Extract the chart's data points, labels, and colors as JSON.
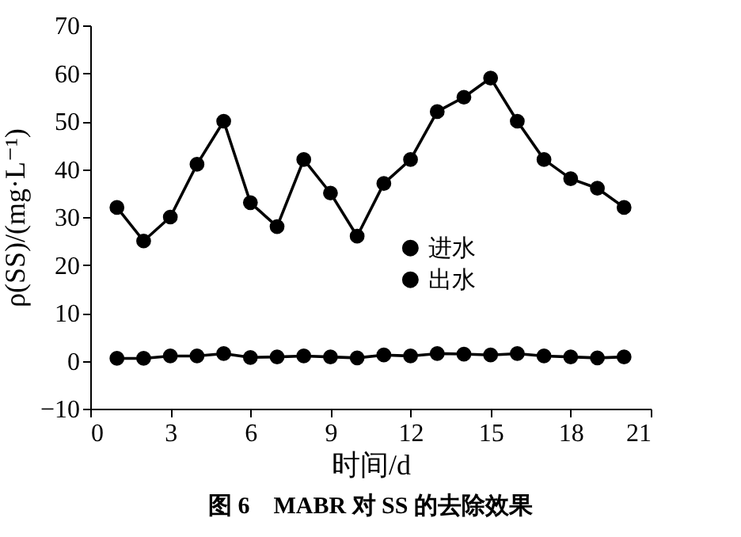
{
  "chart_data": {
    "type": "line",
    "x": [
      1,
      2,
      3,
      4,
      5,
      6,
      7,
      8,
      9,
      10,
      11,
      12,
      13,
      14,
      15,
      16,
      17,
      18,
      19,
      20
    ],
    "series": [
      {
        "name": "进水",
        "color": "#000000",
        "values": [
          32,
          25,
          30,
          41,
          50,
          33,
          28,
          42,
          35,
          26,
          37,
          42,
          52,
          55,
          59,
          50,
          42,
          38,
          36,
          32
        ]
      },
      {
        "name": "出水",
        "color": "#000000",
        "values": [
          0.5,
          0.5,
          1,
          1,
          1.5,
          0.7,
          0.8,
          1,
          0.8,
          0.6,
          1.2,
          1,
          1.5,
          1.4,
          1.2,
          1.5,
          1,
          0.8,
          0.6,
          0.8
        ]
      }
    ],
    "xlim": [
      0,
      21
    ],
    "xticks": [
      0,
      3,
      6,
      9,
      12,
      15,
      18,
      21
    ],
    "ylim": [
      -10,
      70
    ],
    "yticks": [
      -10,
      0,
      10,
      20,
      30,
      40,
      50,
      60,
      70
    ],
    "xlabel": "时间/d",
    "ylabel": "ρ(SS)/(mg·L⁻¹)",
    "annotations": [
      "图 6　MABR 对 SS 的去除效果"
    ],
    "marker": "circle",
    "line_style": "solid",
    "legend": "right",
    "grid": false
  }
}
